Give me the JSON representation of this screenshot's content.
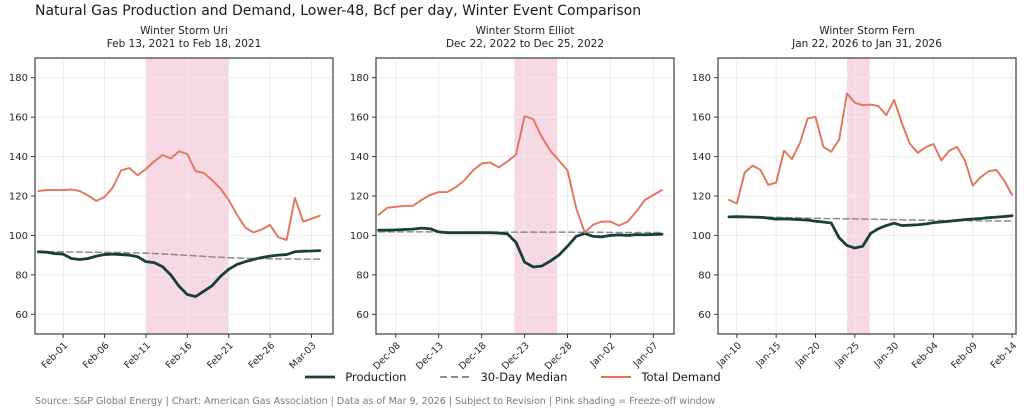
{
  "title": "Natural Gas Production and Demand, Lower-48, Bcf per day, Winter Event Comparison",
  "footer": "Source: S&P Global Energy  |  Chart: American Gas Association  |  Data as of Mar 9, 2026  |  Subject to Revision  |  Pink shading = Freeze-off window",
  "legend": {
    "items": [
      {
        "label": "Production",
        "color": "#17403a",
        "dash": "",
        "width": 2.8,
        "z": 2
      },
      {
        "label": "30-Day Median",
        "color": "#8c8c8c",
        "dash": "6,3.5",
        "width": 1.5,
        "z": 1
      },
      {
        "label": "Total Demand",
        "color": "#e4735a",
        "dash": "",
        "width": 1.9,
        "z": 3
      }
    ]
  },
  "colors": {
    "shade_pink": "#f7d9e6",
    "grid": "#ececec",
    "frame": "#3c3c3c",
    "tick_text": "#262626"
  },
  "chart_data": [
    {
      "type": "line",
      "title": "Winter Storm Uri",
      "subtitle": "Feb 13, 2021 to Feb 18, 2021",
      "ylim": [
        50,
        190
      ],
      "yticks": [
        60,
        80,
        100,
        120,
        140,
        160,
        180
      ],
      "xlim": [
        -0.4,
        35.6
      ],
      "x": [
        "Jan-29",
        "Jan-30",
        "Jan-31",
        "Feb-01",
        "Feb-02",
        "Feb-03",
        "Feb-04",
        "Feb-05",
        "Feb-06",
        "Feb-07",
        "Feb-08",
        "Feb-09",
        "Feb-10",
        "Feb-11",
        "Feb-12",
        "Feb-13",
        "Feb-14",
        "Feb-15",
        "Feb-16",
        "Feb-17",
        "Feb-18",
        "Feb-19",
        "Feb-20",
        "Feb-21",
        "Feb-22",
        "Feb-23",
        "Feb-24",
        "Feb-25",
        "Feb-26",
        "Feb-27",
        "Feb-28",
        "Mar-01",
        "Mar-02",
        "Mar-03",
        "Mar-04"
      ],
      "x_tick_labels": [
        "Feb-01",
        "Feb-06",
        "Feb-11",
        "Feb-16",
        "Feb-21",
        "Feb-26",
        "Mar-03"
      ],
      "x_tick_indices": [
        3,
        8,
        13,
        18,
        23,
        28,
        33
      ],
      "freeze_off_window": {
        "from": "Feb-11",
        "to": "Feb-21",
        "from_index": 13,
        "to_index": 23
      },
      "series": [
        {
          "name": "Production",
          "values": [
            91.7,
            91.5,
            90.8,
            90.5,
            88.3,
            87.8,
            88.3,
            89.5,
            90.3,
            90.5,
            90.3,
            90.0,
            89.2,
            86.7,
            86.2,
            84.2,
            80.0,
            74.2,
            70.0,
            69.0,
            71.7,
            74.5,
            79.2,
            82.8,
            85.3,
            86.7,
            87.8,
            88.8,
            89.5,
            90.0,
            90.3,
            91.7,
            92.0,
            92.1,
            92.3
          ]
        },
        {
          "name": "30-Day Median",
          "values": [
            91.7,
            91.7,
            91.7,
            91.7,
            91.6,
            91.6,
            91.5,
            91.5,
            91.5,
            91.4,
            91.3,
            91.2,
            91.1,
            91.0,
            90.8,
            90.6,
            90.4,
            90.1,
            89.9,
            89.6,
            89.4,
            89.1,
            88.9,
            88.7,
            88.5,
            88.4,
            88.3,
            88.2,
            88.2,
            88.1,
            88.1,
            88.0,
            88.0,
            88.0,
            88.0
          ]
        },
        {
          "name": "Total Demand",
          "values": [
            122.5,
            123.0,
            123.0,
            123.0,
            123.3,
            122.5,
            120.3,
            117.5,
            119.5,
            124.3,
            133.0,
            134.2,
            130.5,
            133.7,
            137.5,
            140.8,
            139.0,
            142.7,
            141.3,
            132.6,
            131.7,
            128.0,
            123.8,
            118.0,
            110.5,
            104.0,
            101.5,
            103.0,
            105.3,
            99.0,
            97.7,
            119.0,
            107.0,
            108.5,
            110.0
          ]
        }
      ]
    },
    {
      "type": "line",
      "title": "Winter Storm Elliot",
      "subtitle": "Dec 22, 2022 to Dec 25, 2022",
      "ylim": [
        50,
        190
      ],
      "yticks": [
        60,
        80,
        100,
        120,
        140,
        160,
        180
      ],
      "xlim": [
        -0.3,
        34.4
      ],
      "x": [
        "Dec-06",
        "Dec-07",
        "Dec-08",
        "Dec-09",
        "Dec-10",
        "Dec-11",
        "Dec-12",
        "Dec-13",
        "Dec-14",
        "Dec-15",
        "Dec-16",
        "Dec-17",
        "Dec-18",
        "Dec-19",
        "Dec-20",
        "Dec-21",
        "Dec-22",
        "Dec-23",
        "Dec-24",
        "Dec-25",
        "Dec-26",
        "Dec-27",
        "Dec-28",
        "Dec-29",
        "Dec-30",
        "Dec-31",
        "Jan-01",
        "Jan-02",
        "Jan-03",
        "Jan-04",
        "Jan-05",
        "Jan-06",
        "Jan-07",
        "Jan-08"
      ],
      "x_tick_labels": [
        "Dec-08",
        "Dec-13",
        "Dec-18",
        "Dec-23",
        "Dec-28",
        "Jan-02",
        "Jan-07"
      ],
      "x_tick_indices": [
        2,
        7,
        12,
        17,
        22,
        27,
        32
      ],
      "freeze_off_window": {
        "from": "Dec-22",
        "to": "Dec-27",
        "from_index": 15.8,
        "to_index": 20.8
      },
      "series": [
        {
          "name": "Production",
          "values": [
            102.7,
            102.7,
            102.8,
            103.0,
            103.2,
            103.7,
            103.4,
            101.8,
            101.4,
            101.4,
            101.4,
            101.4,
            101.4,
            101.4,
            101.2,
            100.8,
            96.5,
            86.5,
            84.0,
            84.5,
            87.0,
            90.0,
            94.5,
            99.5,
            101.0,
            99.5,
            99.3,
            100.0,
            100.3,
            100.0,
            100.4,
            100.3,
            100.5,
            100.6
          ]
        },
        {
          "name": "30-Day Median",
          "values": [
            101.8,
            101.8,
            101.8,
            101.8,
            101.8,
            101.8,
            101.8,
            101.7,
            101.7,
            101.7,
            101.7,
            101.7,
            101.7,
            101.7,
            101.7,
            101.7,
            101.7,
            101.7,
            101.7,
            101.7,
            101.7,
            101.7,
            101.7,
            101.6,
            101.6,
            101.6,
            101.6,
            101.5,
            101.5,
            101.5,
            101.5,
            101.5,
            101.5,
            101.5
          ]
        },
        {
          "name": "Total Demand",
          "values": [
            110.5,
            114.0,
            114.5,
            115.0,
            115.0,
            118.0,
            120.5,
            122.0,
            122.0,
            124.5,
            128.0,
            133.0,
            136.5,
            137.0,
            134.5,
            137.5,
            141.0,
            160.5,
            159.0,
            150.0,
            143.0,
            138.0,
            133.0,
            114.0,
            101.5,
            105.5,
            107.0,
            107.0,
            105.0,
            107.0,
            112.0,
            118.0,
            120.5,
            123.0
          ]
        }
      ]
    },
    {
      "type": "line",
      "title": "Winter Storm Fern",
      "subtitle": "Jan 22, 2026 to Jan 31, 2026",
      "ylim": [
        50,
        190
      ],
      "yticks": [
        60,
        80,
        100,
        120,
        140,
        160,
        180
      ],
      "xlim": [
        -1.4,
        36.5
      ],
      "x": [
        "Jan-09",
        "Jan-10",
        "Jan-11",
        "Jan-12",
        "Jan-13",
        "Jan-14",
        "Jan-15",
        "Jan-16",
        "Jan-17",
        "Jan-18",
        "Jan-19",
        "Jan-20",
        "Jan-21",
        "Jan-22",
        "Jan-23",
        "Jan-24",
        "Jan-25",
        "Jan-26",
        "Jan-27",
        "Jan-28",
        "Jan-29",
        "Jan-30",
        "Jan-31",
        "Feb-01",
        "Feb-02",
        "Feb-03",
        "Feb-04",
        "Feb-05",
        "Feb-06",
        "Feb-07",
        "Feb-08",
        "Feb-09",
        "Feb-10",
        "Feb-11",
        "Feb-12",
        "Feb-13",
        "Feb-14"
      ],
      "x_tick_labels": [
        "Jan-10",
        "Jan-15",
        "Jan-20",
        "Jan-25",
        "Jan-30",
        "Feb-04",
        "Feb-09",
        "Feb-14"
      ],
      "x_tick_indices": [
        1,
        6,
        11,
        16,
        21,
        26,
        31,
        36
      ],
      "freeze_off_window": {
        "from": "Jan-24",
        "to": "Jan-27",
        "from_index": 15,
        "to_index": 17.9
      },
      "series": [
        {
          "name": "Production",
          "values": [
            109.4,
            109.5,
            109.4,
            109.3,
            109.2,
            108.8,
            108.3,
            108.4,
            108.2,
            108.0,
            107.8,
            107.2,
            106.8,
            106.3,
            98.8,
            94.9,
            93.6,
            94.5,
            101.0,
            103.4,
            105.0,
            106.2,
            105.0,
            105.2,
            105.4,
            105.8,
            106.5,
            106.8,
            107.2,
            107.6,
            108.0,
            108.3,
            108.6,
            109.0,
            109.3,
            109.6,
            110.0
          ]
        },
        {
          "name": "30-Day Median",
          "values": [
            109.4,
            109.4,
            109.4,
            109.4,
            109.3,
            109.3,
            109.2,
            109.1,
            109.0,
            108.9,
            108.8,
            108.7,
            108.6,
            108.5,
            108.5,
            108.4,
            108.4,
            108.3,
            108.3,
            108.2,
            108.1,
            108.0,
            107.9,
            107.8,
            107.8,
            107.7,
            107.7,
            107.6,
            107.6,
            107.5,
            107.5,
            107.4,
            107.4,
            107.4,
            107.3,
            107.3,
            107.3
          ]
        },
        {
          "name": "Total Demand",
          "values": [
            118.0,
            116.2,
            132.0,
            135.4,
            133.3,
            125.6,
            126.8,
            143.0,
            138.7,
            146.7,
            159.3,
            160.2,
            144.9,
            142.5,
            148.5,
            172.0,
            167.3,
            166.1,
            166.4,
            165.6,
            161.0,
            168.7,
            156.8,
            146.5,
            141.9,
            144.7,
            146.4,
            138.0,
            143.0,
            144.9,
            138.0,
            125.3,
            129.5,
            132.5,
            133.2,
            127.8,
            120.5
          ]
        }
      ]
    }
  ]
}
